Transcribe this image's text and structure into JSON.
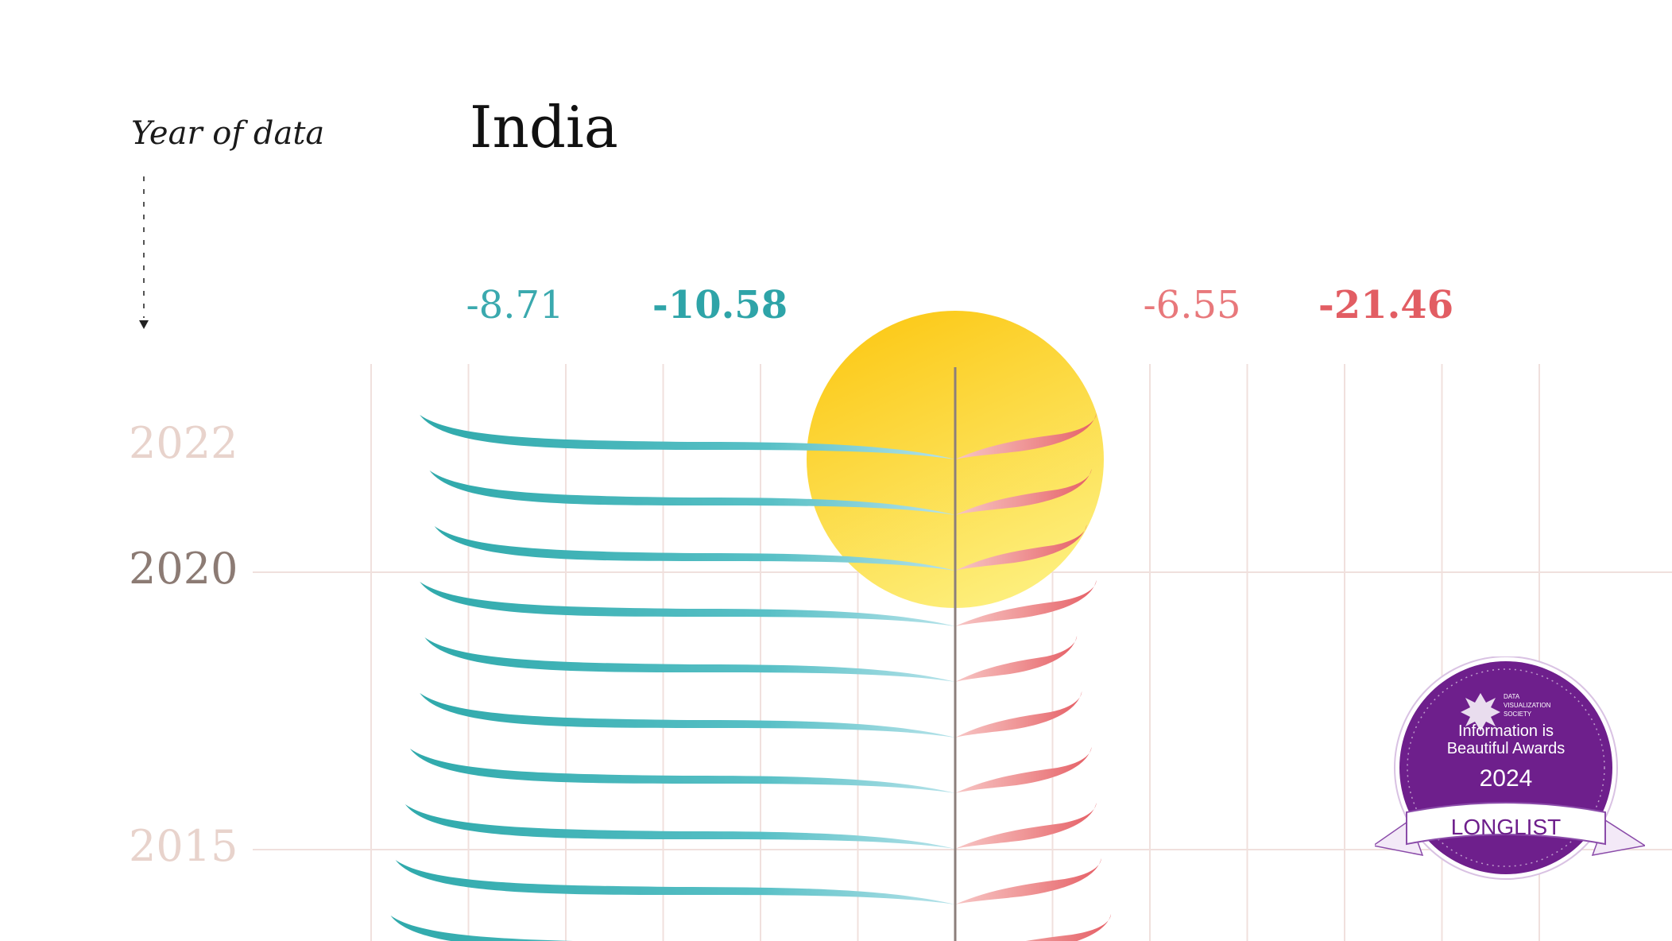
{
  "header": {
    "axis_caption": "Year of data",
    "country": "India"
  },
  "colors": {
    "teal": "#3fb1b4",
    "teal_light": "#a6dde5",
    "coral": "#e86a70",
    "coral_light": "#f4b9b9",
    "sun_top": "#fcc917",
    "sun_bottom": "#fcef7d",
    "grid": "#f0e0dd",
    "stem": "#8c7f7b",
    "badge_purple": "#6e1f8c"
  },
  "chart_data": {
    "type": "diverging-leaf",
    "title": "India",
    "y_axis_label": "Year of data",
    "y_tick_labels": [
      {
        "label": "2022",
        "emphasis": "faded"
      },
      {
        "label": "2020",
        "emphasis": "bold"
      },
      {
        "label": "2015",
        "emphasis": "faded"
      }
    ],
    "column_headers": {
      "left": [
        "-8.71",
        "-10.58"
      ],
      "right": [
        "-6.55",
        "-21.46"
      ]
    },
    "series": [
      {
        "name": "",
        "side": "left",
        "color": "#3fb1b4",
        "leaves": [
          {
            "year": 2022,
            "length": 5.5
          },
          {
            "year": 2021,
            "length": 5.4
          },
          {
            "year": 2020,
            "length": 5.35
          },
          {
            "year": 2019,
            "length": 5.5
          },
          {
            "year": 2018,
            "length": 5.45
          },
          {
            "year": 2017,
            "length": 5.5
          },
          {
            "year": 2016,
            "length": 5.6
          },
          {
            "year": 2015,
            "length": 5.65
          },
          {
            "year": 2014,
            "length": 5.75
          },
          {
            "year": 2013,
            "length": 5.8
          }
        ]
      },
      {
        "name": "",
        "side": "right",
        "color": "#e86a70",
        "leaves": [
          {
            "year": 2022,
            "length": 1.45
          },
          {
            "year": 2021,
            "length": 1.4
          },
          {
            "year": 2020,
            "length": 1.35
          },
          {
            "year": 2019,
            "length": 1.45
          },
          {
            "year": 2018,
            "length": 1.25
          },
          {
            "year": 2017,
            "length": 1.3
          },
          {
            "year": 2016,
            "length": 1.4
          },
          {
            "year": 2015,
            "length": 1.45
          },
          {
            "year": 2014,
            "length": 1.5
          },
          {
            "year": 2013,
            "length": 1.6
          }
        ]
      }
    ],
    "grid": true,
    "highlight": "sun"
  },
  "badge": {
    "org": [
      "DATA",
      "VISUALIZATION",
      "SOCIETY"
    ],
    "line1": "Information is",
    "line2": "Beautiful Awards",
    "year": "2024",
    "ribbon": "LONGLIST"
  }
}
